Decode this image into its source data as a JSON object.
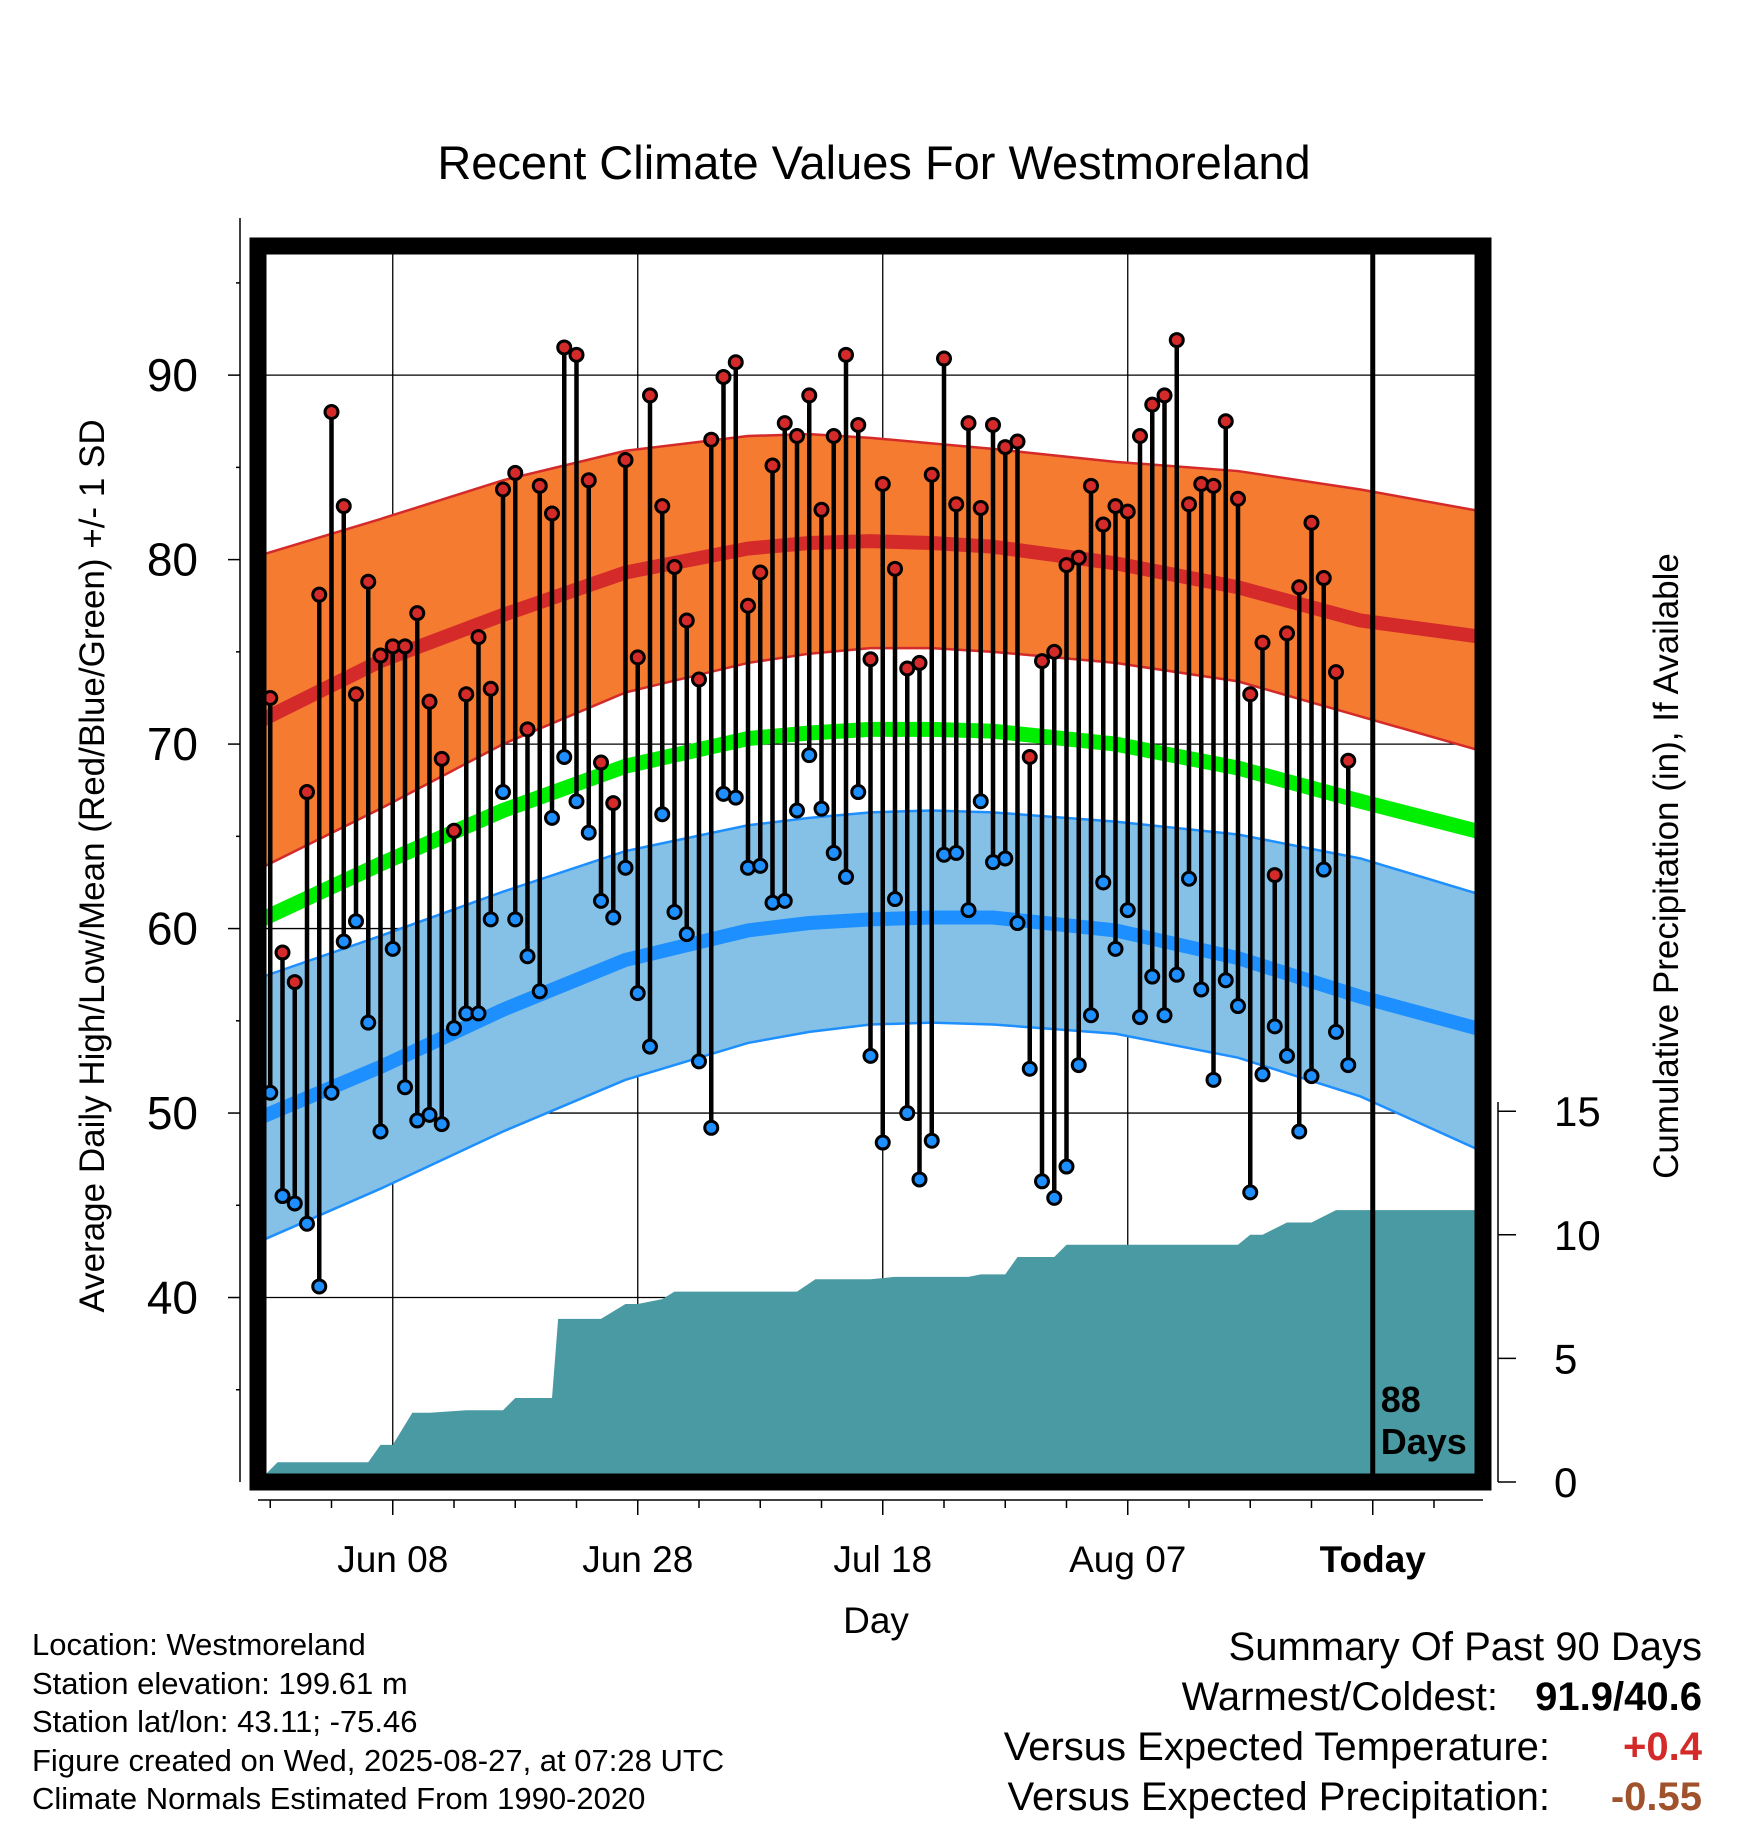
{
  "chart_data": {
    "type": "line",
    "title": "Recent Climate Values For Westmoreland",
    "xlabel": "Day",
    "ylabel": "Average Daily High/Low/Mean (Red/Blue/Green) +/- 1 SD",
    "y2label": "Cumulative Precipitation (in), If Available",
    "xticks": [
      {
        "day": 11,
        "label": "Jun 08"
      },
      {
        "day": 31,
        "label": "Jun 28"
      },
      {
        "day": 51,
        "label": "Jul 18"
      },
      {
        "day": 71,
        "label": "Aug 07"
      },
      {
        "day": 91,
        "label": "Today"
      }
    ],
    "xlim": [
      0,
      100
    ],
    "ylim": [
      30,
      97
    ],
    "yticks": [
      40,
      50,
      60,
      70,
      80,
      90
    ],
    "y2lim": [
      0,
      50
    ],
    "y2ticks": [
      0,
      5,
      10,
      15
    ],
    "today_marker": {
      "day": 91,
      "label_line1": "88",
      "label_line2": "Days"
    },
    "grid": true,
    "colors": {
      "high_band": "#f47b30",
      "high_mean": "#d42a2a",
      "low_band": "#85c1e6",
      "low_mean": "#1e8fff",
      "mean": "#00ee00",
      "precip": "#4a9aa3",
      "high_dot": "#d42a2a",
      "low_dot": "#1e8fff"
    },
    "normals": {
      "days": [
        0,
        10,
        20,
        30,
        40,
        45,
        50,
        55,
        60,
        70,
        80,
        90,
        100
      ],
      "high_mean": [
        71.2,
        74.5,
        77.0,
        79.3,
        80.6,
        80.9,
        81.0,
        80.9,
        80.7,
        79.8,
        78.5,
        76.7,
        75.8
      ],
      "high_upper": [
        80.2,
        82.2,
        84.3,
        85.9,
        86.7,
        86.8,
        86.6,
        86.3,
        86.0,
        85.3,
        84.8,
        83.8,
        82.6
      ],
      "high_lower": [
        63.2,
        66.5,
        70.0,
        72.8,
        74.4,
        74.9,
        75.2,
        75.2,
        75.0,
        74.4,
        73.4,
        71.5,
        69.6
      ],
      "low_mean": [
        49.7,
        52.5,
        55.6,
        58.3,
        59.9,
        60.3,
        60.5,
        60.6,
        60.6,
        59.9,
        58.4,
        56.3,
        54.5
      ],
      "low_upper": [
        57.3,
        59.6,
        62.0,
        64.2,
        65.6,
        66.0,
        66.3,
        66.4,
        66.3,
        65.8,
        65.1,
        63.8,
        61.8
      ],
      "low_lower": [
        43.0,
        45.9,
        49.0,
        51.8,
        53.8,
        54.4,
        54.8,
        54.9,
        54.8,
        54.3,
        53.0,
        50.9,
        47.9
      ],
      "mean": [
        60.4,
        63.5,
        66.4,
        68.8,
        70.3,
        70.6,
        70.8,
        70.8,
        70.7,
        70.0,
        68.7,
        66.9,
        65.2
      ]
    },
    "series": [
      {
        "name": "High",
        "x": [
          0,
          1,
          2,
          3,
          4,
          5,
          6,
          7,
          8,
          9,
          10,
          11,
          12,
          13,
          14,
          15,
          16,
          17,
          18,
          19,
          20,
          21,
          22,
          23,
          24,
          25,
          26,
          27,
          28,
          29,
          30,
          31,
          32,
          33,
          34,
          35,
          36,
          37,
          38,
          39,
          40,
          41,
          42,
          43,
          44,
          45,
          46,
          47,
          48,
          49,
          50,
          51,
          52,
          53,
          54,
          55,
          56,
          57,
          58,
          59,
          60,
          61,
          62,
          63,
          64,
          65,
          66,
          67,
          68,
          69,
          70,
          71,
          72,
          73,
          74,
          75,
          76,
          77,
          78,
          79,
          80,
          81,
          82,
          83,
          84,
          85,
          86,
          87,
          88,
          89,
          90
        ],
        "values": [
          67.2,
          72.5,
          58.7,
          57.1,
          67.4,
          78.1,
          88.0,
          82.9,
          72.7,
          78.8,
          74.8,
          75.3,
          75.3,
          77.1,
          72.3,
          69.2,
          65.3,
          72.7,
          75.8,
          73.0,
          83.8,
          84.7,
          70.8,
          84.0,
          82.5,
          91.5,
          91.1,
          84.3,
          69.0,
          66.8,
          85.4,
          74.7,
          88.9,
          82.9,
          79.6,
          76.7,
          73.5,
          86.5,
          89.9,
          90.7,
          77.5,
          79.3,
          85.1,
          87.4,
          86.7,
          88.9,
          82.7,
          86.7,
          91.1,
          87.3,
          74.6,
          84.1,
          79.5,
          74.1,
          74.4,
          84.6,
          90.9,
          83.0,
          87.4,
          82.8,
          87.3,
          86.1,
          86.4,
          69.3,
          74.5,
          75.0,
          79.7,
          80.1,
          84.0,
          81.9,
          82.9,
          82.6,
          86.7,
          88.4,
          88.9,
          91.9,
          83.0,
          84.1,
          84.0,
          87.5,
          83.3,
          72.7,
          75.5,
          62.9,
          76.0,
          78.5,
          82.0,
          79.0,
          73.9,
          69.1,
          null
        ]
      },
      {
        "name": "Low",
        "x": [
          0,
          1,
          2,
          3,
          4,
          5,
          6,
          7,
          8,
          9,
          10,
          11,
          12,
          13,
          14,
          15,
          16,
          17,
          18,
          19,
          20,
          21,
          22,
          23,
          24,
          25,
          26,
          27,
          28,
          29,
          30,
          31,
          32,
          33,
          34,
          35,
          36,
          37,
          38,
          39,
          40,
          41,
          42,
          43,
          44,
          45,
          46,
          47,
          48,
          49,
          50,
          51,
          52,
          53,
          54,
          55,
          56,
          57,
          58,
          59,
          60,
          61,
          62,
          63,
          64,
          65,
          66,
          67,
          68,
          69,
          70,
          71,
          72,
          73,
          74,
          75,
          76,
          77,
          78,
          79,
          80,
          81,
          82,
          83,
          84,
          85,
          86,
          87,
          88,
          89,
          90
        ],
        "values": [
          51.6,
          51.1,
          45.5,
          45.1,
          44.0,
          40.6,
          51.1,
          59.3,
          60.4,
          54.9,
          49.0,
          58.9,
          51.4,
          49.6,
          49.9,
          49.4,
          54.6,
          55.4,
          55.4,
          60.5,
          67.4,
          60.5,
          58.5,
          56.6,
          66.0,
          69.3,
          66.9,
          65.2,
          61.5,
          60.6,
          63.3,
          56.5,
          53.6,
          66.2,
          60.9,
          59.7,
          52.8,
          49.2,
          67.3,
          67.1,
          63.3,
          63.4,
          61.4,
          61.5,
          66.4,
          69.4,
          66.5,
          64.1,
          62.8,
          67.4,
          53.1,
          48.4,
          61.6,
          50.0,
          46.4,
          48.5,
          64.0,
          64.1,
          61.0,
          66.9,
          63.6,
          63.8,
          60.3,
          52.4,
          46.3,
          45.4,
          47.1,
          52.6,
          55.3,
          62.5,
          58.9,
          61.0,
          55.2,
          57.4,
          55.3,
          57.5,
          62.7,
          56.7,
          51.8,
          57.2,
          55.8,
          45.7,
          52.1,
          54.7,
          53.1,
          49.0,
          52.0,
          63.2,
          54.4,
          52.6,
          null
        ]
      },
      {
        "name": "Cumulative Precipitation",
        "x": [
          0,
          1.6,
          2,
          7,
          9,
          10,
          11,
          12.6,
          14,
          17,
          18,
          20,
          21,
          23,
          24,
          24.5,
          27,
          28,
          30,
          31,
          33,
          34,
          35,
          36,
          38,
          43,
          44,
          45.5,
          46,
          48,
          50,
          52,
          55,
          56,
          58,
          59,
          61,
          62,
          65,
          66,
          69,
          74,
          76,
          80,
          81,
          82,
          84,
          86,
          88,
          91,
          100
        ],
        "values": [
          0,
          0.8,
          0.8,
          0.8,
          0.8,
          1.5,
          1.5,
          2.8,
          2.8,
          2.9,
          2.9,
          2.9,
          3.4,
          3.4,
          3.4,
          6.6,
          6.6,
          6.6,
          7.2,
          7.2,
          7.4,
          7.7,
          7.7,
          7.7,
          7.7,
          7.7,
          7.7,
          8.2,
          8.2,
          8.2,
          8.2,
          8.3,
          8.3,
          8.3,
          8.3,
          8.4,
          8.4,
          9.1,
          9.1,
          9.6,
          9.6,
          9.6,
          9.6,
          9.6,
          10.0,
          10.0,
          10.5,
          10.5,
          11.0,
          11.0,
          11.0
        ]
      }
    ]
  },
  "location": {
    "name_line": "Location: Westmoreland",
    "elevation_line": "Station elevation: 199.61 m",
    "latlon_line": "Station lat/lon: 43.11; -75.46",
    "created_line": "Figure created on Wed, 2025-08-27, at 07:28 UTC",
    "normals_line": "Climate Normals Estimated From 1990-2020"
  },
  "summary": {
    "title": "Summary Of Past 90 Days",
    "warmest_coldest_label": "Warmest/Coldest:",
    "warmest_coldest_value": "91.9/40.6",
    "temp_label": "Versus Expected Temperature:",
    "temp_value": "+0.4",
    "temp_color": "#d42a2a",
    "precip_label": "Versus Expected Precipitation:",
    "precip_value": "-0.55",
    "precip_color": "#a0522d"
  }
}
